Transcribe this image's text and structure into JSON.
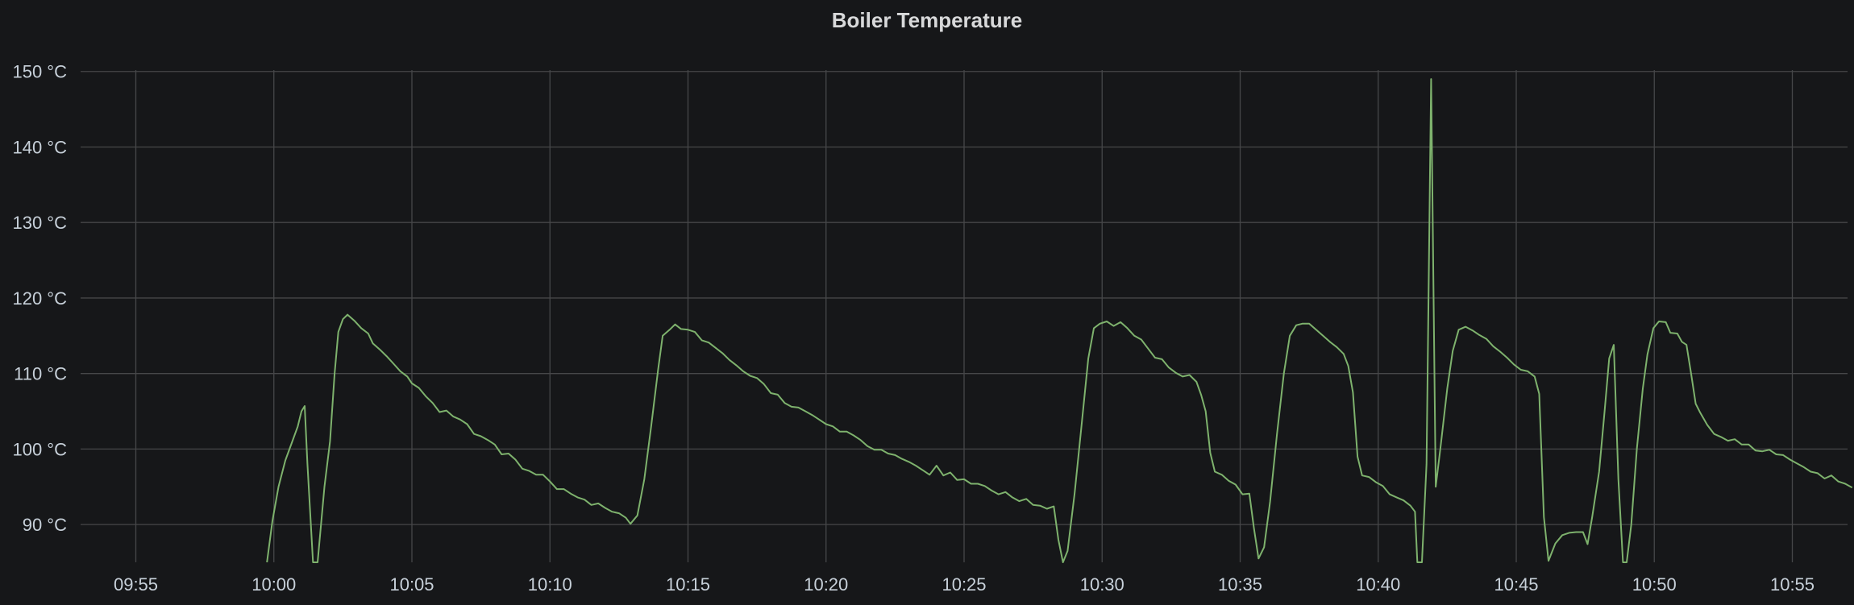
{
  "chart_data": {
    "type": "line",
    "title": "Boiler Temperature",
    "xlabel": "",
    "ylabel": "",
    "ylim": [
      85,
      152
    ],
    "xlim": [
      "09:53:00",
      "10:57:00"
    ],
    "grid": true,
    "y_ticks": [
      "90 °C",
      "100 °C",
      "110 °C",
      "120 °C",
      "130 °C",
      "140 °C",
      "150 °C"
    ],
    "x_ticks": [
      "09:55",
      "10:00",
      "10:05",
      "10:10",
      "10:15",
      "10:20",
      "10:25",
      "10:30",
      "10:35",
      "10:40",
      "10:45",
      "10:50",
      "10:55"
    ],
    "series": [
      {
        "color": "#7eb26d",
        "points": [
          [
            "09:59:45",
            85
          ],
          [
            "09:59:57",
            90.5
          ],
          [
            "10:00:10",
            95
          ],
          [
            "10:00:25",
            98.5
          ],
          [
            "10:00:40",
            101
          ],
          [
            "10:00:52",
            103
          ],
          [
            "10:01:00",
            105
          ],
          [
            "10:01:07",
            105.7
          ],
          [
            "10:01:13",
            98
          ],
          [
            "10:01:25",
            85
          ],
          [
            "10:01:35",
            85
          ],
          [
            "10:01:50",
            95
          ],
          [
            "10:02:02",
            101
          ],
          [
            "10:02:12",
            110
          ],
          [
            "10:02:20",
            115.5
          ],
          [
            "10:02:30",
            117.2
          ],
          [
            "10:02:40",
            117.8
          ],
          [
            "10:02:55",
            117
          ],
          [
            "10:03:10",
            116
          ],
          [
            "10:03:25",
            115.3
          ],
          [
            "10:03:35",
            114
          ],
          [
            "10:03:50",
            113.2
          ],
          [
            "10:04:05",
            112.3
          ],
          [
            "10:04:20",
            111.3
          ],
          [
            "10:04:35",
            110.3
          ],
          [
            "10:04:50",
            109.6
          ],
          [
            "10:05:00",
            108.7
          ],
          [
            "10:05:15",
            108.1
          ],
          [
            "10:05:30",
            107
          ],
          [
            "10:05:45",
            106.1
          ],
          [
            "10:06:00",
            104.9
          ],
          [
            "10:06:15",
            105.1
          ],
          [
            "10:06:30",
            104.3
          ],
          [
            "10:06:45",
            103.9
          ],
          [
            "10:07:00",
            103.3
          ],
          [
            "10:07:15",
            102
          ],
          [
            "10:07:30",
            101.7
          ],
          [
            "10:07:45",
            101.2
          ],
          [
            "10:08:00",
            100.6
          ],
          [
            "10:08:15",
            99.3
          ],
          [
            "10:08:30",
            99.4
          ],
          [
            "10:08:45",
            98.6
          ],
          [
            "10:09:00",
            97.4
          ],
          [
            "10:09:15",
            97.1
          ],
          [
            "10:09:30",
            96.6
          ],
          [
            "10:09:45",
            96.6
          ],
          [
            "10:10:00",
            95.7
          ],
          [
            "10:10:15",
            94.7
          ],
          [
            "10:10:30",
            94.7
          ],
          [
            "10:10:45",
            94.1
          ],
          [
            "10:11:00",
            93.6
          ],
          [
            "10:11:15",
            93.3
          ],
          [
            "10:11:30",
            92.6
          ],
          [
            "10:11:45",
            92.8
          ],
          [
            "10:12:00",
            92.2
          ],
          [
            "10:12:15",
            91.7
          ],
          [
            "10:12:30",
            91.5
          ],
          [
            "10:12:45",
            90.9
          ],
          [
            "10:12:55",
            90.1
          ],
          [
            "10:13:10",
            91.2
          ],
          [
            "10:13:25",
            96
          ],
          [
            "10:13:40",
            103
          ],
          [
            "10:13:55",
            110.5
          ],
          [
            "10:14:05",
            115
          ],
          [
            "10:14:20",
            115.8
          ],
          [
            "10:14:32",
            116.5
          ],
          [
            "10:14:45",
            115.9
          ],
          [
            "10:15:00",
            115.8
          ],
          [
            "10:15:15",
            115.5
          ],
          [
            "10:15:30",
            114.4
          ],
          [
            "10:15:45",
            114.1
          ],
          [
            "10:16:00",
            113.4
          ],
          [
            "10:16:15",
            112.7
          ],
          [
            "10:16:30",
            111.8
          ],
          [
            "10:16:45",
            111.1
          ],
          [
            "10:17:00",
            110.3
          ],
          [
            "10:17:15",
            109.7
          ],
          [
            "10:17:30",
            109.4
          ],
          [
            "10:17:45",
            108.6
          ],
          [
            "10:18:00",
            107.4
          ],
          [
            "10:18:15",
            107.2
          ],
          [
            "10:18:30",
            106.1
          ],
          [
            "10:18:45",
            105.6
          ],
          [
            "10:19:00",
            105.5
          ],
          [
            "10:19:15",
            105
          ],
          [
            "10:19:30",
            104.5
          ],
          [
            "10:19:45",
            103.9
          ],
          [
            "10:20:00",
            103.3
          ],
          [
            "10:20:15",
            103
          ],
          [
            "10:20:30",
            102.3
          ],
          [
            "10:20:45",
            102.3
          ],
          [
            "10:21:00",
            101.8
          ],
          [
            "10:21:15",
            101.2
          ],
          [
            "10:21:30",
            100.4
          ],
          [
            "10:21:45",
            99.9
          ],
          [
            "10:22:00",
            99.9
          ],
          [
            "10:22:15",
            99.4
          ],
          [
            "10:22:30",
            99.2
          ],
          [
            "10:22:45",
            98.7
          ],
          [
            "10:23:00",
            98.3
          ],
          [
            "10:23:15",
            97.8
          ],
          [
            "10:23:30",
            97.2
          ],
          [
            "10:23:45",
            96.6
          ],
          [
            "10:24:00",
            97.8
          ],
          [
            "10:24:15",
            96.5
          ],
          [
            "10:24:30",
            96.9
          ],
          [
            "10:24:45",
            95.9
          ],
          [
            "10:25:00",
            96
          ],
          [
            "10:25:15",
            95.4
          ],
          [
            "10:25:30",
            95.4
          ],
          [
            "10:25:45",
            95.1
          ],
          [
            "10:26:00",
            94.5
          ],
          [
            "10:26:15",
            94
          ],
          [
            "10:26:30",
            94.3
          ],
          [
            "10:26:45",
            93.6
          ],
          [
            "10:27:00",
            93.1
          ],
          [
            "10:27:15",
            93.4
          ],
          [
            "10:27:30",
            92.6
          ],
          [
            "10:27:45",
            92.5
          ],
          [
            "10:28:00",
            92.1
          ],
          [
            "10:28:15",
            92.4
          ],
          [
            "10:28:25",
            88
          ],
          [
            "10:28:35",
            84.5
          ],
          [
            "10:28:45",
            86.5
          ],
          [
            "10:29:00",
            94
          ],
          [
            "10:29:15",
            103
          ],
          [
            "10:29:30",
            112
          ],
          [
            "10:29:42",
            116
          ],
          [
            "10:29:55",
            116.6
          ],
          [
            "10:30:10",
            116.9
          ],
          [
            "10:30:25",
            116.3
          ],
          [
            "10:30:40",
            116.8
          ],
          [
            "10:30:55",
            116
          ],
          [
            "10:31:10",
            115
          ],
          [
            "10:31:25",
            114.5
          ],
          [
            "10:31:40",
            113.3
          ],
          [
            "10:31:55",
            112.1
          ],
          [
            "10:32:10",
            111.9
          ],
          [
            "10:32:25",
            110.8
          ],
          [
            "10:32:40",
            110.1
          ],
          [
            "10:32:55",
            109.6
          ],
          [
            "10:33:10",
            109.8
          ],
          [
            "10:33:25",
            108.9
          ],
          [
            "10:33:35",
            107.2
          ],
          [
            "10:33:45",
            105
          ],
          [
            "10:33:55",
            99.5
          ],
          [
            "10:34:05",
            97
          ],
          [
            "10:34:20",
            96.6
          ],
          [
            "10:34:35",
            95.8
          ],
          [
            "10:34:50",
            95.3
          ],
          [
            "10:35:05",
            94
          ],
          [
            "10:35:20",
            94.1
          ],
          [
            "10:35:30",
            89.5
          ],
          [
            "10:35:40",
            85.5
          ],
          [
            "10:35:52",
            87
          ],
          [
            "10:36:05",
            93
          ],
          [
            "10:36:20",
            102
          ],
          [
            "10:36:35",
            110
          ],
          [
            "10:36:48",
            115
          ],
          [
            "10:37:02",
            116.4
          ],
          [
            "10:37:15",
            116.6
          ],
          [
            "10:37:30",
            116.6
          ],
          [
            "10:37:45",
            115.8
          ],
          [
            "10:38:00",
            115
          ],
          [
            "10:38:15",
            114.2
          ],
          [
            "10:38:30",
            113.5
          ],
          [
            "10:38:45",
            112.6
          ],
          [
            "10:38:55",
            111
          ],
          [
            "10:39:05",
            107.5
          ],
          [
            "10:39:15",
            99
          ],
          [
            "10:39:25",
            96.5
          ],
          [
            "10:39:40",
            96.3
          ],
          [
            "10:39:55",
            95.6
          ],
          [
            "10:40:10",
            95.1
          ],
          [
            "10:40:25",
            94
          ],
          [
            "10:40:40",
            93.6
          ],
          [
            "10:40:55",
            93.2
          ],
          [
            "10:41:10",
            92.5
          ],
          [
            "10:41:20",
            91.7
          ],
          [
            "10:41:25",
            85
          ],
          [
            "10:41:35",
            85
          ],
          [
            "10:41:45",
            98
          ],
          [
            "10:41:55",
            149
          ],
          [
            "10:42:05",
            95
          ],
          [
            "10:42:15",
            100
          ],
          [
            "10:42:30",
            108
          ],
          [
            "10:42:42",
            113
          ],
          [
            "10:42:55",
            115.8
          ],
          [
            "10:43:10",
            116.2
          ],
          [
            "10:43:25",
            115.7
          ],
          [
            "10:43:40",
            115.1
          ],
          [
            "10:43:55",
            114.6
          ],
          [
            "10:44:10",
            113.6
          ],
          [
            "10:44:25",
            112.9
          ],
          [
            "10:44:40",
            112.1
          ],
          [
            "10:44:55",
            111.2
          ],
          [
            "10:45:10",
            110.5
          ],
          [
            "10:45:25",
            110.3
          ],
          [
            "10:45:40",
            109.6
          ],
          [
            "10:45:50",
            107.3
          ],
          [
            "10:46:00",
            91
          ],
          [
            "10:46:10",
            85.2
          ],
          [
            "10:46:25",
            87.5
          ],
          [
            "10:46:40",
            88.6
          ],
          [
            "10:46:55",
            88.9
          ],
          [
            "10:47:10",
            89
          ],
          [
            "10:47:25",
            89
          ],
          [
            "10:47:35",
            87.4
          ],
          [
            "10:47:45",
            91
          ],
          [
            "10:48:00",
            97
          ],
          [
            "10:48:12",
            105
          ],
          [
            "10:48:22",
            112
          ],
          [
            "10:48:32",
            113.8
          ],
          [
            "10:48:42",
            96
          ],
          [
            "10:48:52",
            85
          ],
          [
            "10:49:00",
            85
          ],
          [
            "10:49:10",
            90
          ],
          [
            "10:49:22",
            100
          ],
          [
            "10:49:35",
            108
          ],
          [
            "10:49:45",
            112.5
          ],
          [
            "10:49:58",
            116
          ],
          [
            "10:50:10",
            116.9
          ],
          [
            "10:50:25",
            116.8
          ],
          [
            "10:50:35",
            115.4
          ],
          [
            "10:50:50",
            115.3
          ],
          [
            "10:51:00",
            114.2
          ],
          [
            "10:51:10",
            113.8
          ],
          [
            "10:51:20",
            110
          ],
          [
            "10:51:30",
            106
          ],
          [
            "10:51:40",
            104.8
          ],
          [
            "10:51:55",
            103.2
          ],
          [
            "10:52:10",
            102
          ],
          [
            "10:52:25",
            101.6
          ],
          [
            "10:52:40",
            101.1
          ],
          [
            "10:52:55",
            101.3
          ],
          [
            "10:53:10",
            100.6
          ],
          [
            "10:53:25",
            100.6
          ],
          [
            "10:53:40",
            99.8
          ],
          [
            "10:53:55",
            99.7
          ],
          [
            "10:54:10",
            99.9
          ],
          [
            "10:54:25",
            99.3
          ],
          [
            "10:54:40",
            99.2
          ],
          [
            "10:54:55",
            98.6
          ],
          [
            "10:55:10",
            98.1
          ],
          [
            "10:55:25",
            97.6
          ],
          [
            "10:55:40",
            97
          ],
          [
            "10:55:55",
            96.8
          ],
          [
            "10:56:10",
            96.1
          ],
          [
            "10:56:25",
            96.5
          ],
          [
            "10:56:40",
            95.7
          ],
          [
            "10:56:55",
            95.4
          ],
          [
            "10:57:10",
            94.9
          ]
        ]
      }
    ]
  }
}
